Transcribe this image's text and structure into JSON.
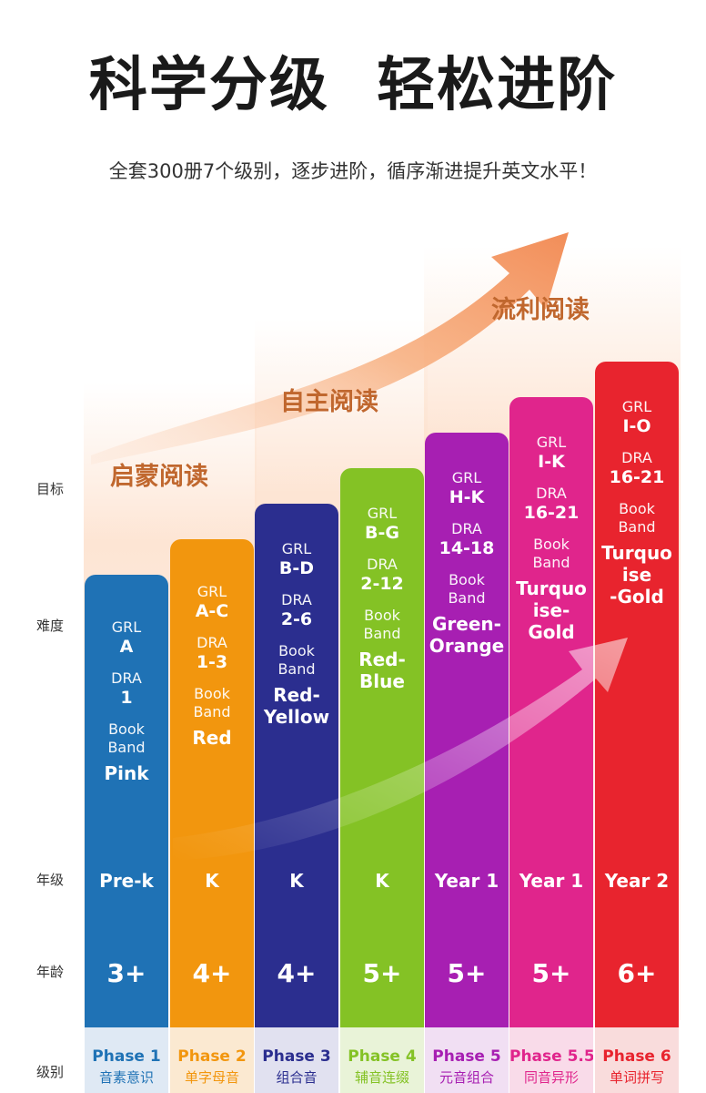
{
  "header": {
    "title": "科学分级  轻松进阶",
    "subtitle": "全套300册7个级别，逐步进阶，循序渐进提升英文水平！"
  },
  "stages": [
    {
      "label": "启蒙阅读"
    },
    {
      "label": "自主阅读"
    },
    {
      "label": "流利阅读"
    }
  ],
  "row_labels": {
    "goal": "目标",
    "difficulty": "难度",
    "grade": "年级",
    "age": "年龄",
    "level": "级别"
  },
  "levels": [
    {
      "grl_label": "GRL",
      "grl": "A",
      "dra_label": "DRA",
      "dra": "1",
      "band_label": [
        "Book",
        "Band"
      ],
      "band": [
        "Pink"
      ],
      "grade": "Pre-k",
      "age": "3+",
      "phase": "Phase 1",
      "phase_cn": "音素意识",
      "color": "#1f72b5",
      "phase_bg": "#dfe9f4",
      "phase_color": "#1f72b5"
    },
    {
      "grl_label": "GRL",
      "grl": "A-C",
      "dra_label": "DRA",
      "dra": "1-3",
      "band_label": [
        "Book",
        "Band"
      ],
      "band": [
        "Red"
      ],
      "grade": "K",
      "age": "4+",
      "phase": "Phase 2",
      "phase_cn": "单字母音",
      "color": "#f2960e",
      "phase_bg": "#fbe9d1",
      "phase_color": "#f2960e"
    },
    {
      "grl_label": "GRL",
      "grl": "B-D",
      "dra_label": "DRA",
      "dra": "2-6",
      "band_label": [
        "Book",
        "Band"
      ],
      "band": [
        "Red-",
        "Yellow"
      ],
      "grade": "K",
      "age": "4+",
      "phase": "Phase 3",
      "phase_cn": "组合音",
      "color": "#2b2e8f",
      "phase_bg": "#e1e1f0",
      "phase_color": "#2b2e8f"
    },
    {
      "grl_label": "GRL",
      "grl": "B-G",
      "dra_label": "DRA",
      "dra": "2-12",
      "band_label": [
        "Book",
        "Band"
      ],
      "band": [
        "Red-",
        "Blue"
      ],
      "grade": "K",
      "age": "5+",
      "phase": "Phase 4",
      "phase_cn": "辅音连缀",
      "color": "#84c225",
      "phase_bg": "#e9f3d8",
      "phase_color": "#84c225"
    },
    {
      "grl_label": "GRL",
      "grl": "H-K",
      "dra_label": "DRA",
      "dra": "14-18",
      "band_label": [
        "Book",
        "Band"
      ],
      "band": [
        "Green-",
        "Orange"
      ],
      "grade": "Year 1",
      "age": "5+",
      "phase": "Phase 5",
      "phase_cn": "元音组合",
      "color": "#a71fb2",
      "phase_bg": "#f1dff3",
      "phase_color": "#a71fb2"
    },
    {
      "grl_label": "GRL",
      "grl": "I-K",
      "dra_label": "DRA",
      "dra": "16-21",
      "band_label": [
        "Book",
        "Band"
      ],
      "band": [
        "Turquo",
        "ise-",
        "Gold"
      ],
      "grade": "Year 1",
      "age": "5+",
      "phase": "Phase 5.5",
      "phase_cn": "同音异形",
      "color": "#e0258c",
      "phase_bg": "#f9dbe9",
      "phase_color": "#e0258c"
    },
    {
      "grl_label": "GRL",
      "grl": "I-O",
      "dra_label": "DRA",
      "dra": "16-21",
      "band_label": [
        "Book",
        "Band"
      ],
      "band": [
        "Turquo",
        "ise",
        "-Gold"
      ],
      "grade": "Year 2",
      "age": "6+",
      "phase": "Phase 6",
      "phase_cn": "单词拼写",
      "color": "#e8242e",
      "phase_bg": "#f9dcdc",
      "phase_color": "#e8242e"
    }
  ]
}
